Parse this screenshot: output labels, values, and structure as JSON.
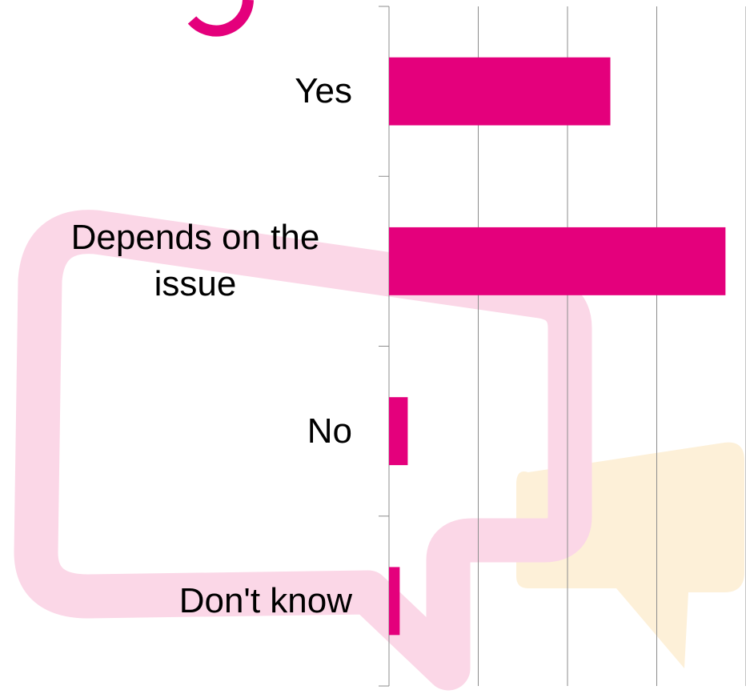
{
  "chart_data": {
    "type": "hbar",
    "categories": [
      "Yes",
      "Depends on the issue",
      "No",
      "Don't know"
    ],
    "values": [
      24.8,
      37.7,
      2.1,
      1.2
    ],
    "color": "#e4007c",
    "xlim": [
      0,
      40
    ],
    "xticks": [
      0,
      10,
      20,
      30,
      40
    ],
    "grid": true
  }
}
